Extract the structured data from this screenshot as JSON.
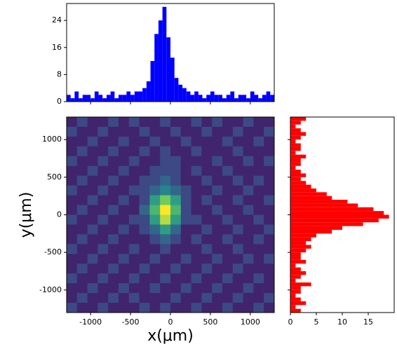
{
  "chart_data": [
    {
      "type": "histogram",
      "orientation": "vertical",
      "color": "#0000ff",
      "bins": [
        -1300,
        -1250,
        -1200,
        -1150,
        -1100,
        -1050,
        -1000,
        -950,
        -900,
        -850,
        -800,
        -750,
        -700,
        -650,
        -600,
        -550,
        -500,
        -450,
        -400,
        -350,
        -300,
        -250,
        -200,
        -150,
        -100,
        -50,
        0,
        50,
        100,
        150,
        200,
        250,
        300,
        350,
        400,
        450,
        500,
        550,
        600,
        650,
        700,
        750,
        800,
        850,
        900,
        950,
        1000,
        1050,
        1100,
        1150,
        1200,
        1250,
        1300
      ],
      "counts": [
        2,
        1,
        3,
        1,
        2,
        2,
        1,
        3,
        2,
        1,
        2,
        3,
        1,
        2,
        2,
        3,
        2,
        3,
        3,
        4,
        6,
        12,
        20,
        24,
        28,
        19,
        13,
        7,
        5,
        4,
        3,
        2,
        3,
        2,
        1,
        2,
        3,
        2,
        2,
        1,
        2,
        3,
        1,
        2,
        2,
        1,
        3,
        2,
        1,
        2,
        3,
        2
      ],
      "xlim": [
        -1300,
        1300
      ],
      "ylim": [
        0,
        29
      ],
      "yticks": [
        0,
        8,
        16,
        24
      ]
    },
    {
      "type": "heatmap",
      "colormap": "viridis",
      "zlim": [
        0,
        9
      ],
      "xlim": [
        -1300,
        1300
      ],
      "ylim": [
        -1300,
        1300
      ],
      "xticks": [
        -1000,
        -500,
        0,
        500,
        1000
      ],
      "yticks": [
        -1000,
        -500,
        0,
        500,
        1000
      ],
      "x_label": "x(μm)",
      "y_label": "y(μm)",
      "z": [
        [
          1,
          2,
          1,
          1,
          2,
          1,
          2,
          1,
          1,
          2,
          1,
          1,
          2,
          1,
          2,
          1,
          1,
          2,
          1,
          1
        ],
        [
          2,
          1,
          1,
          2,
          1,
          1,
          1,
          2,
          1,
          1,
          2,
          1,
          1,
          2,
          1,
          1,
          2,
          1,
          1,
          2
        ],
        [
          1,
          1,
          2,
          1,
          1,
          2,
          1,
          1,
          2,
          1,
          1,
          2,
          1,
          1,
          1,
          2,
          1,
          1,
          2,
          1
        ],
        [
          1,
          2,
          1,
          1,
          2,
          1,
          1,
          2,
          1,
          2,
          1,
          1,
          2,
          1,
          1,
          1,
          2,
          1,
          1,
          1
        ],
        [
          2,
          1,
          1,
          2,
          1,
          1,
          2,
          1,
          1,
          2,
          2,
          1,
          1,
          1,
          2,
          1,
          1,
          2,
          1,
          2
        ],
        [
          1,
          1,
          2,
          1,
          1,
          2,
          1,
          1,
          2,
          2,
          2,
          1,
          2,
          1,
          1,
          2,
          1,
          1,
          1,
          1
        ],
        [
          1,
          2,
          1,
          1,
          2,
          1,
          1,
          2,
          2,
          3,
          2,
          1,
          1,
          2,
          1,
          1,
          2,
          1,
          2,
          1
        ],
        [
          2,
          1,
          1,
          2,
          1,
          1,
          2,
          2,
          3,
          4,
          3,
          2,
          1,
          1,
          2,
          1,
          1,
          2,
          1,
          1
        ],
        [
          1,
          1,
          2,
          1,
          1,
          2,
          1,
          2,
          5,
          7,
          5,
          2,
          1,
          2,
          1,
          1,
          2,
          1,
          1,
          2
        ],
        [
          1,
          2,
          1,
          1,
          2,
          1,
          1,
          3,
          6,
          9,
          6,
          2,
          1,
          1,
          2,
          1,
          1,
          2,
          1,
          1
        ],
        [
          2,
          1,
          1,
          2,
          1,
          1,
          2,
          2,
          5,
          8,
          5,
          2,
          2,
          1,
          1,
          2,
          1,
          1,
          2,
          1
        ],
        [
          1,
          1,
          2,
          1,
          1,
          2,
          1,
          2,
          3,
          5,
          3,
          1,
          1,
          2,
          1,
          1,
          2,
          1,
          1,
          2
        ],
        [
          1,
          2,
          1,
          1,
          2,
          1,
          1,
          1,
          2,
          3,
          2,
          1,
          2,
          1,
          1,
          2,
          1,
          1,
          2,
          1
        ],
        [
          2,
          1,
          1,
          2,
          1,
          1,
          2,
          1,
          1,
          2,
          1,
          1,
          1,
          2,
          1,
          1,
          2,
          1,
          1,
          1
        ],
        [
          1,
          1,
          2,
          1,
          1,
          2,
          1,
          1,
          2,
          1,
          1,
          2,
          1,
          1,
          2,
          1,
          1,
          2,
          1,
          2
        ],
        [
          1,
          2,
          1,
          1,
          2,
          1,
          1,
          2,
          1,
          1,
          2,
          1,
          1,
          2,
          1,
          1,
          2,
          1,
          1,
          1
        ],
        [
          2,
          1,
          1,
          2,
          1,
          1,
          2,
          1,
          1,
          2,
          1,
          1,
          2,
          1,
          1,
          2,
          1,
          1,
          2,
          1
        ],
        [
          1,
          1,
          2,
          1,
          1,
          2,
          1,
          1,
          2,
          1,
          1,
          2,
          1,
          1,
          2,
          1,
          1,
          2,
          1,
          1
        ],
        [
          1,
          2,
          1,
          1,
          2,
          1,
          2,
          1,
          1,
          1,
          2,
          1,
          1,
          2,
          1,
          1,
          2,
          1,
          1,
          2
        ],
        [
          2,
          1,
          1,
          2,
          1,
          1,
          1,
          2,
          1,
          2,
          1,
          1,
          2,
          1,
          1,
          2,
          1,
          1,
          2,
          1
        ]
      ]
    },
    {
      "type": "histogram",
      "orientation": "horizontal",
      "color": "#ff0000",
      "bins": [
        -1300,
        -1250,
        -1200,
        -1150,
        -1100,
        -1050,
        -1000,
        -950,
        -900,
        -850,
        -800,
        -750,
        -700,
        -650,
        -600,
        -550,
        -500,
        -450,
        -400,
        -350,
        -300,
        -250,
        -200,
        -150,
        -100,
        -50,
        0,
        50,
        100,
        150,
        200,
        250,
        300,
        350,
        400,
        450,
        500,
        550,
        600,
        650,
        700,
        750,
        800,
        850,
        900,
        950,
        1000,
        1050,
        1100,
        1150,
        1200,
        1250,
        1300
      ],
      "counts": [
        2,
        1,
        3,
        2,
        1,
        2,
        2,
        4,
        1,
        2,
        3,
        2,
        1,
        3,
        2,
        2,
        3,
        4,
        3,
        4,
        5,
        8,
        10,
        14,
        17,
        19,
        18,
        16,
        13,
        11,
        8,
        7,
        5,
        4,
        3,
        2,
        3,
        2,
        1,
        2,
        2,
        3,
        1,
        2,
        2,
        1,
        2,
        3,
        2,
        1,
        2,
        3
      ],
      "ylim": [
        -1300,
        1300
      ],
      "xlim": [
        0,
        20
      ],
      "xticks": [
        0,
        5,
        10,
        15
      ]
    }
  ]
}
